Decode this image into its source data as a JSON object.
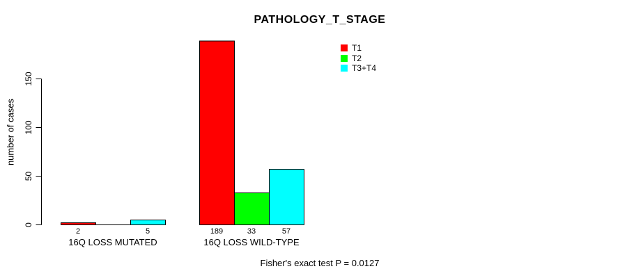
{
  "chart_data": {
    "type": "bar",
    "title": "PATHOLOGY_T_STAGE",
    "ylabel": "number of cases",
    "xlabel": "",
    "categories": [
      "16Q LOSS MUTATED",
      "16Q LOSS WILD-TYPE"
    ],
    "series": [
      {
        "name": "T1",
        "color": "#ff0000",
        "values": [
          2,
          189
        ]
      },
      {
        "name": "T2",
        "color": "#00ff00",
        "values": [
          0,
          33
        ]
      },
      {
        "name": "T3+T4",
        "color": "#00ffff",
        "values": [
          5,
          57
        ]
      }
    ],
    "bar_value_labels": {
      "shown": true,
      "zero_values_hidden": true
    },
    "yticks": [
      0,
      50,
      100,
      150
    ],
    "ylim": [
      0,
      195
    ],
    "grid": false,
    "legend_position": "top-right",
    "annotation": "Fisher's exact test P = 0.0127",
    "axis_color": "#000000",
    "background_color": "#ffffff"
  }
}
